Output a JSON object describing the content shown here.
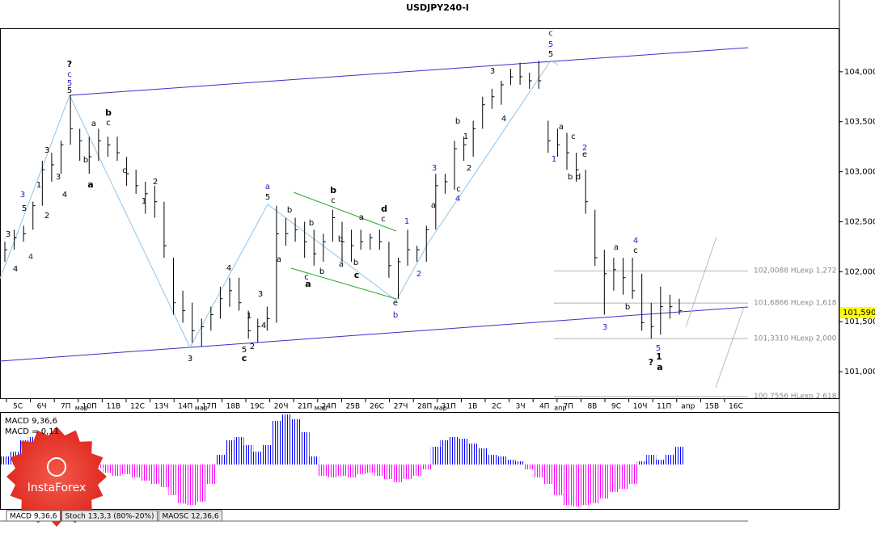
{
  "chart_data": {
    "type": "ohlc",
    "title": "USDJPY240-I",
    "high": [
      102.3,
      102.42,
      102.46,
      102.7,
      103.11,
      103.19,
      103.31,
      103.77,
      103.43,
      103.35,
      103.43,
      103.35,
      103.35,
      103.15,
      103.02,
      102.9,
      102.86,
      102.7,
      102.14,
      101.81,
      101.69,
      101.53,
      101.65,
      101.85,
      101.94,
      101.94,
      101.61,
      101.53,
      101.65,
      102.66,
      102.54,
      102.54,
      102.5,
      102.42,
      102.38,
      102.62,
      102.5,
      102.42,
      102.42,
      102.38,
      102.42,
      102.3,
      102.14,
      102.42,
      102.26,
      102.46,
      102.98,
      102.98,
      103.31,
      103.35,
      103.51,
      103.75,
      103.83,
      103.91,
      104.03,
      104.09,
      103.99,
      104.11,
      103.51,
      103.43,
      103.39,
      103.19,
      103.02,
      102.62,
      102.22,
      102.14,
      102.14,
      102.14,
      101.98,
      101.69,
      101.85,
      101.77,
      101.73
    ],
    "low": [
      102.1,
      102.22,
      102.3,
      102.42,
      102.66,
      102.9,
      102.98,
      103.27,
      103.11,
      102.98,
      103.11,
      103.15,
      103.11,
      102.86,
      102.78,
      102.58,
      102.54,
      102.14,
      101.57,
      101.49,
      101.29,
      101.25,
      101.41,
      101.53,
      101.65,
      101.61,
      101.33,
      101.29,
      101.41,
      101.49,
      102.26,
      102.3,
      102.14,
      102.06,
      102.1,
      102.3,
      102.1,
      102.1,
      102.22,
      102.22,
      102.22,
      101.94,
      101.73,
      102.06,
      102.1,
      102.1,
      102.42,
      102.78,
      102.82,
      103.11,
      103.15,
      103.43,
      103.63,
      103.67,
      103.87,
      103.87,
      103.83,
      103.83,
      103.19,
      103.15,
      103.02,
      102.9,
      102.58,
      102.06,
      101.57,
      101.81,
      101.77,
      101.73,
      101.41,
      101.33,
      101.37,
      101.53,
      101.57
    ],
    "close": [
      102.22,
      102.34,
      102.38,
      102.66,
      103.02,
      103.07,
      103.27,
      103.43,
      103.31,
      103.15,
      103.31,
      103.27,
      103.19,
      102.98,
      102.86,
      102.78,
      102.7,
      102.26,
      101.69,
      101.61,
      101.41,
      101.45,
      101.57,
      101.73,
      101.81,
      101.69,
      101.41,
      101.45,
      101.53,
      102.38,
      102.38,
      102.42,
      102.3,
      102.18,
      102.3,
      102.54,
      102.3,
      102.26,
      102.3,
      102.34,
      102.3,
      102.06,
      102.1,
      102.22,
      102.22,
      102.42,
      102.86,
      102.9,
      103.23,
      103.27,
      103.43,
      103.67,
      103.75,
      103.87,
      103.95,
      103.95,
      103.91,
      103.91,
      103.31,
      103.27,
      103.19,
      103.02,
      102.7,
      102.14,
      101.98,
      102.02,
      101.94,
      101.81,
      101.49,
      101.45,
      101.65,
      101.65,
      101.61
    ],
    "color": "#000000",
    "ylim": [
      100.734,
      104.435
    ],
    "yticks": [
      {
        "value": 101,
        "label": "101,000"
      },
      {
        "value": 101.5,
        "label": "101,500"
      },
      {
        "value": 102,
        "label": "102,000"
      },
      {
        "value": 102.5,
        "label": "102,500"
      },
      {
        "value": 103,
        "label": "103,000"
      },
      {
        "value": 103.5,
        "label": "103,500"
      },
      {
        "value": 104,
        "label": "104,000"
      }
    ],
    "current_price": {
      "value": 101.59,
      "label": "101,590"
    },
    "levels": [
      {
        "value": 102.0088,
        "label": "102,0088 HLexp 1,272"
      },
      {
        "value": 101.6866,
        "label": "101,6866 HLexp 1,618"
      },
      {
        "value": 101.331,
        "label": "101,3310 HLexp 2,000"
      },
      {
        "value": 100.7556,
        "label": "100,7556 HLexp 2,618"
      }
    ],
    "categories": [
      "5С",
      "6Ч",
      "7П",
      "10П",
      "11В",
      "12С",
      "13Ч",
      "14П",
      "17П",
      "18В",
      "19С",
      "20Ч",
      "21П",
      "24П",
      "25В",
      "26С",
      "27Ч",
      "28П",
      "31П",
      "1В",
      "2С",
      "3Ч",
      "4П",
      "7П",
      "8В",
      "9С",
      "10Ч",
      "11П",
      "апр",
      "15В",
      "16С"
    ],
    "month_labels": [
      "мар",
      "мар",
      "мар",
      "мар",
      "апр"
    ],
    "wave_labels": [
      "?",
      "c",
      "5",
      "5",
      "3",
      "5",
      "3",
      "4",
      "4",
      "2",
      "1",
      "3",
      "3",
      "4",
      "b",
      "c",
      "a",
      "a",
      "b",
      "c",
      "2",
      "1",
      "4",
      "3",
      "1",
      "4",
      "5",
      "2",
      "c",
      "3",
      "a",
      "5",
      "b",
      "a",
      "c",
      "a",
      "b",
      "c",
      "b",
      "b",
      "a",
      "b",
      "c",
      "b",
      "a",
      "d",
      "c",
      "e",
      "b",
      "1",
      "2",
      "a",
      "3",
      "c",
      "4",
      "b",
      "1",
      "2",
      "3",
      "4",
      "c",
      "5",
      "5",
      "a",
      "c",
      "1",
      "2",
      "e",
      "b",
      "d",
      "a",
      "4",
      "c",
      "b",
      "3",
      "5",
      "1",
      "?",
      "a"
    ],
    "indicator": {
      "title": "MACD 9,36,6",
      "current": "MACD = 0,11",
      "values": [
        0.05,
        0.08,
        0.15,
        0.17,
        0.18,
        0.16,
        0.13,
        0.1,
        0.03,
        0.01,
        -0.02,
        -0.05,
        -0.07,
        -0.06,
        -0.08,
        -0.1,
        -0.12,
        -0.14,
        -0.19,
        -0.24,
        -0.25,
        -0.23,
        -0.12,
        0.06,
        0.15,
        0.17,
        0.12,
        0.08,
        0.12,
        0.27,
        0.31,
        0.28,
        0.2,
        0.05,
        -0.07,
        -0.08,
        -0.07,
        -0.08,
        -0.06,
        -0.05,
        -0.07,
        -0.09,
        -0.11,
        -0.09,
        -0.07,
        -0.03,
        0.11,
        0.15,
        0.17,
        0.16,
        0.13,
        0.1,
        0.06,
        0.05,
        0.03,
        0.02,
        -0.03,
        -0.08,
        -0.12,
        -0.19,
        -0.25,
        -0.26,
        -0.25,
        -0.24,
        -0.21,
        -0.17,
        -0.15,
        -0.12,
        0.02,
        0.06,
        0.03,
        0.06,
        0.11
      ],
      "ylim": [
        -0.275,
        0.31
      ],
      "up_color": "#0000ff",
      "down_color": "#ff00ff"
    },
    "tabs": [
      "MACD 9,36,6",
      "Stoch 13,3,3 (80%-20%)",
      "MAOSC 12,36,6"
    ],
    "logo": "InstaForex"
  }
}
